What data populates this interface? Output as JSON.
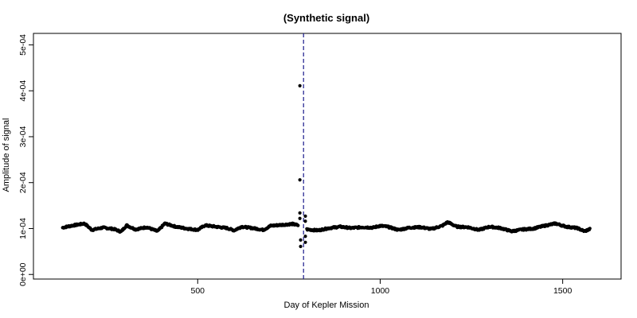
{
  "chart_data": {
    "type": "scatter",
    "title": "(Synthetic signal)",
    "xlabel": "Day of Kepler Mission",
    "ylabel": "Amplitude of signal",
    "xlim": [
      50,
      1660
    ],
    "ylim": [
      -1e-05,
      0.000525
    ],
    "x_ticks": [
      500,
      1000,
      1500
    ],
    "x_tick_labels": [
      "500",
      "1000",
      "1500"
    ],
    "y_ticks": [
      0,
      0.0001,
      0.0002,
      0.0003,
      0.0004,
      0.0005
    ],
    "y_tick_labels": [
      "0e+00",
      "1e-04",
      "2e-04",
      "3e-04",
      "4e-04",
      "5e-04"
    ],
    "grid": false,
    "vline": {
      "x": 790,
      "style": "dashed",
      "color": "#1a1a8c"
    },
    "baseline_series": {
      "description_points": [
        [
          130,
          0.000102
        ],
        [
          160,
          0.000107
        ],
        [
          190,
          0.000111
        ],
        [
          210,
          9.7e-05
        ],
        [
          240,
          0.000102
        ],
        [
          270,
          9.9e-05
        ],
        [
          290,
          9.3e-05
        ],
        [
          305,
          0.000107
        ],
        [
          330,
          9.8e-05
        ],
        [
          360,
          0.000103
        ],
        [
          390,
          9.4e-05
        ],
        [
          410,
          0.000111
        ],
        [
          440,
          0.000104
        ],
        [
          470,
          0.0001
        ],
        [
          500,
          9.7e-05
        ],
        [
          520,
          0.000107
        ],
        [
          550,
          0.000104
        ],
        [
          580,
          0.000101
        ],
        [
          600,
          9.6e-05
        ],
        [
          620,
          0.000104
        ],
        [
          650,
          0.000101
        ],
        [
          680,
          9.7e-05
        ],
        [
          700,
          0.000106
        ],
        [
          730,
          0.000108
        ],
        [
          760,
          0.00011
        ],
        [
          780,
          0.000106
        ],
        [
          800,
          9.8e-05
        ],
        [
          830,
          9.6e-05
        ],
        [
          860,
          0.000101
        ],
        [
          890,
          0.000104
        ],
        [
          920,
          0.000101
        ],
        [
          950,
          0.000103
        ],
        [
          980,
          0.000102
        ],
        [
          1000,
          0.000106
        ],
        [
          1020,
          0.000104
        ],
        [
          1050,
          9.7e-05
        ],
        [
          1080,
          0.000102
        ],
        [
          1110,
          0.000103
        ],
        [
          1140,
          9.9e-05
        ],
        [
          1170,
          0.000106
        ],
        [
          1185,
          0.000114
        ],
        [
          1210,
          0.000104
        ],
        [
          1240,
          0.000103
        ],
        [
          1270,
          9.7e-05
        ],
        [
          1300,
          0.000104
        ],
        [
          1330,
          0.000101
        ],
        [
          1360,
          9.4e-05
        ],
        [
          1390,
          9.8e-05
        ],
        [
          1420,
          0.0001
        ],
        [
          1450,
          0.000106
        ],
        [
          1480,
          0.000111
        ],
        [
          1510,
          0.000104
        ],
        [
          1540,
          0.000101
        ],
        [
          1560,
          9.4e-05
        ],
        [
          1575,
          9.9e-05
        ]
      ]
    },
    "outliers": [
      {
        "x": 780,
        "y": 0.000411
      },
      {
        "x": 780,
        "y": 0.000206
      },
      {
        "x": 780,
        "y": 0.000134
      },
      {
        "x": 780,
        "y": 0.000122
      },
      {
        "x": 782,
        "y": 7.5e-05
      },
      {
        "x": 782,
        "y": 6.1e-05
      },
      {
        "x": 795,
        "y": 0.000127
      },
      {
        "x": 795,
        "y": 0.000116
      },
      {
        "x": 795,
        "y": 8.3e-05
      },
      {
        "x": 795,
        "y": 7e-05
      }
    ]
  }
}
